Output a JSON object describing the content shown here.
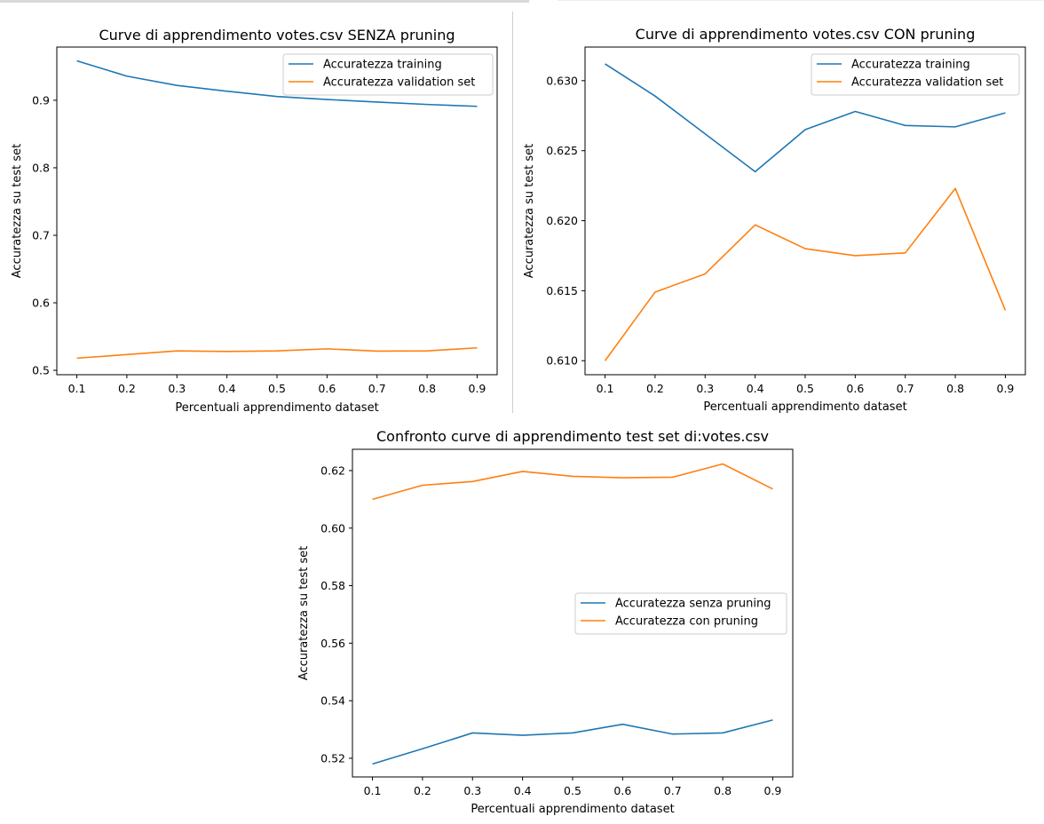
{
  "colors": {
    "series1": "#1f77b4",
    "series2": "#ff7f0e"
  },
  "chart_data": [
    {
      "type": "line",
      "title": "Curve di apprendimento votes.csv SENZA pruning",
      "xlabel": "Percentuali apprendimento dataset",
      "ylabel": "Accuratezza su test set",
      "x": [
        0.1,
        0.2,
        0.3,
        0.4,
        0.5,
        0.6,
        0.7,
        0.8,
        0.9
      ],
      "xticks": [
        "0.1",
        "0.2",
        "0.3",
        "0.4",
        "0.5",
        "0.6",
        "0.7",
        "0.8",
        "0.9"
      ],
      "yticks": [
        "0.5",
        "0.6",
        "0.7",
        "0.8",
        "0.9"
      ],
      "xlim": [
        0.06,
        0.94
      ],
      "ylim": [
        0.4935,
        0.9788
      ],
      "legend_position": "top-right",
      "series": [
        {
          "name": "Accuratezza training",
          "values": [
            0.9584,
            0.9357,
            0.922,
            0.9134,
            0.9055,
            0.9011,
            0.8974,
            0.8938,
            0.891
          ]
        },
        {
          "name": "Accuratezza validation set",
          "values": [
            0.518,
            0.5233,
            0.5288,
            0.528,
            0.5288,
            0.5318,
            0.5284,
            0.5288,
            0.5333
          ]
        }
      ]
    },
    {
      "type": "line",
      "title": "Curve di apprendimento votes.csv CON pruning",
      "xlabel": "Percentuali apprendimento dataset",
      "ylabel": "Accuratezza su test set",
      "x": [
        0.1,
        0.2,
        0.3,
        0.4,
        0.5,
        0.6,
        0.7,
        0.8,
        0.9
      ],
      "xticks": [
        "0.1",
        "0.2",
        "0.3",
        "0.4",
        "0.5",
        "0.6",
        "0.7",
        "0.8",
        "0.9"
      ],
      "yticks": [
        "0.610",
        "0.615",
        "0.620",
        "0.625",
        "0.630"
      ],
      "xlim": [
        0.06,
        0.94
      ],
      "ylim": [
        0.609,
        0.6324
      ],
      "legend_position": "top-right",
      "series": [
        {
          "name": "Accuratezza training",
          "values": [
            0.6312,
            0.6289,
            0.6262,
            0.6235,
            0.6265,
            0.6278,
            0.6268,
            0.6267,
            0.6277
          ]
        },
        {
          "name": "Accuratezza validation set",
          "values": [
            0.61,
            0.6149,
            0.6162,
            0.6197,
            0.618,
            0.6175,
            0.6177,
            0.6223,
            0.6136
          ]
        }
      ]
    },
    {
      "type": "line",
      "title": "Confronto curve di apprendimento test set di:votes.csv",
      "xlabel": "Percentuali apprendimento dataset",
      "ylabel": "Accuratezza su test set",
      "x": [
        0.1,
        0.2,
        0.3,
        0.4,
        0.5,
        0.6,
        0.7,
        0.8,
        0.9
      ],
      "xticks": [
        "0.1",
        "0.2",
        "0.3",
        "0.4",
        "0.5",
        "0.6",
        "0.7",
        "0.8",
        "0.9"
      ],
      "yticks": [
        "0.52",
        "0.54",
        "0.56",
        "0.58",
        "0.60",
        "0.62"
      ],
      "xlim": [
        0.06,
        0.94
      ],
      "ylim": [
        0.5135,
        0.6274
      ],
      "legend_position": "center-right",
      "series": [
        {
          "name": "Accuratezza senza pruning",
          "values": [
            0.518,
            0.5233,
            0.5288,
            0.528,
            0.5288,
            0.5318,
            0.5284,
            0.5288,
            0.5333
          ]
        },
        {
          "name": "Accuratezza con pruning",
          "values": [
            0.61,
            0.6149,
            0.6162,
            0.6197,
            0.618,
            0.6175,
            0.6177,
            0.6223,
            0.6136
          ]
        }
      ]
    }
  ]
}
